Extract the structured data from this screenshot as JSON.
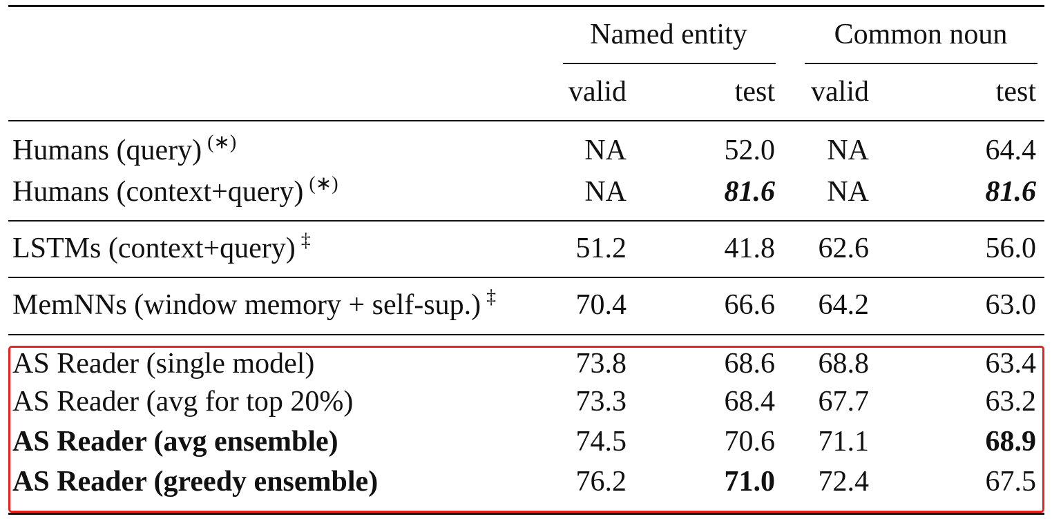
{
  "table": {
    "groups": [
      "Named entity",
      "Common noun"
    ],
    "subheaders": [
      "valid",
      "test",
      "valid",
      "test"
    ],
    "rows": [
      {
        "label": "Humans (query)",
        "note": "(∗)",
        "cells": [
          "NA",
          "52.0",
          "NA",
          "64.4"
        ]
      },
      {
        "label": "Humans (context+query)",
        "note": "(∗)",
        "cells": [
          "NA",
          "81.6",
          "NA",
          "81.6"
        ]
      },
      {
        "label": "LSTMs (context+query)",
        "note": "‡",
        "cells": [
          "51.2",
          "41.8",
          "62.6",
          "56.0"
        ]
      },
      {
        "label": "MemNNs (window memory + self-sup.)",
        "note": "‡",
        "cells": [
          "70.4",
          "66.6",
          "64.2",
          "63.0"
        ]
      },
      {
        "label": "AS Reader (single model)",
        "cells": [
          "73.8",
          "68.6",
          "68.8",
          "63.4"
        ]
      },
      {
        "label": "AS Reader (avg for top 20%)",
        "cells": [
          "73.3",
          "68.4",
          "67.7",
          "63.2"
        ]
      },
      {
        "label": "AS Reader (avg ensemble)",
        "cells": [
          "74.5",
          "70.6",
          "71.1",
          "68.9"
        ]
      },
      {
        "label": "AS Reader (greedy ensemble)",
        "cells": [
          "76.2",
          "71.0",
          "72.4",
          "67.5"
        ]
      }
    ]
  }
}
